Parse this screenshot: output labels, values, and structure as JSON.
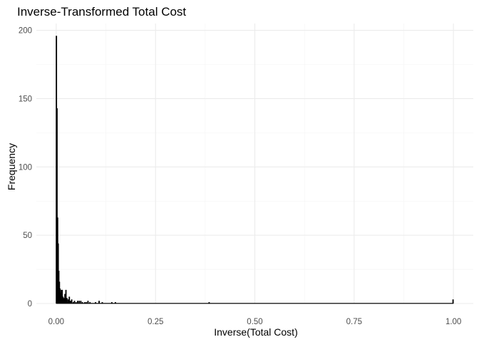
{
  "chart_data": {
    "type": "bar",
    "title": "Inverse-Transformed Total Cost",
    "xlabel": "Inverse(Total Cost)",
    "ylabel": "Frequency",
    "xlim": [
      -0.05,
      1.05
    ],
    "ylim": [
      0,
      205
    ],
    "x_ticks": [
      0.0,
      0.25,
      0.5,
      0.75,
      1.0
    ],
    "x_tick_labels": [
      "0.00",
      "0.25",
      "0.50",
      "0.75",
      "1.00"
    ],
    "y_ticks": [
      0,
      50,
      100,
      150,
      200
    ],
    "y_tick_labels": [
      "0",
      "50",
      "100",
      "150",
      "200"
    ],
    "grid": true,
    "bin_width": 0.0033,
    "bins": [
      {
        "x": 0.0005,
        "count": 196
      },
      {
        "x": 0.002,
        "count": 143
      },
      {
        "x": 0.0035,
        "count": 63
      },
      {
        "x": 0.005,
        "count": 44
      },
      {
        "x": 0.0065,
        "count": 24
      },
      {
        "x": 0.008,
        "count": 16
      },
      {
        "x": 0.0095,
        "count": 11
      },
      {
        "x": 0.011,
        "count": 8
      },
      {
        "x": 0.013,
        "count": 10
      },
      {
        "x": 0.015,
        "count": 10
      },
      {
        "x": 0.017,
        "count": 5
      },
      {
        "x": 0.0195,
        "count": 4
      },
      {
        "x": 0.022,
        "count": 7
      },
      {
        "x": 0.0245,
        "count": 10
      },
      {
        "x": 0.027,
        "count": 4
      },
      {
        "x": 0.03,
        "count": 3
      },
      {
        "x": 0.033,
        "count": 5
      },
      {
        "x": 0.036,
        "count": 2
      },
      {
        "x": 0.039,
        "count": 3
      },
      {
        "x": 0.043,
        "count": 1
      },
      {
        "x": 0.046,
        "count": 2
      },
      {
        "x": 0.05,
        "count": 1
      },
      {
        "x": 0.054,
        "count": 2
      },
      {
        "x": 0.058,
        "count": 2
      },
      {
        "x": 0.062,
        "count": 2
      },
      {
        "x": 0.066,
        "count": 1
      },
      {
        "x": 0.072,
        "count": 1
      },
      {
        "x": 0.076,
        "count": 1
      },
      {
        "x": 0.08,
        "count": 2
      },
      {
        "x": 0.085,
        "count": 1
      },
      {
        "x": 0.099,
        "count": 1
      },
      {
        "x": 0.108,
        "count": 2
      },
      {
        "x": 0.116,
        "count": 1
      },
      {
        "x": 0.14,
        "count": 1
      },
      {
        "x": 0.149,
        "count": 1
      },
      {
        "x": 0.385,
        "count": 1
      },
      {
        "x": 0.999,
        "count": 3
      }
    ]
  }
}
